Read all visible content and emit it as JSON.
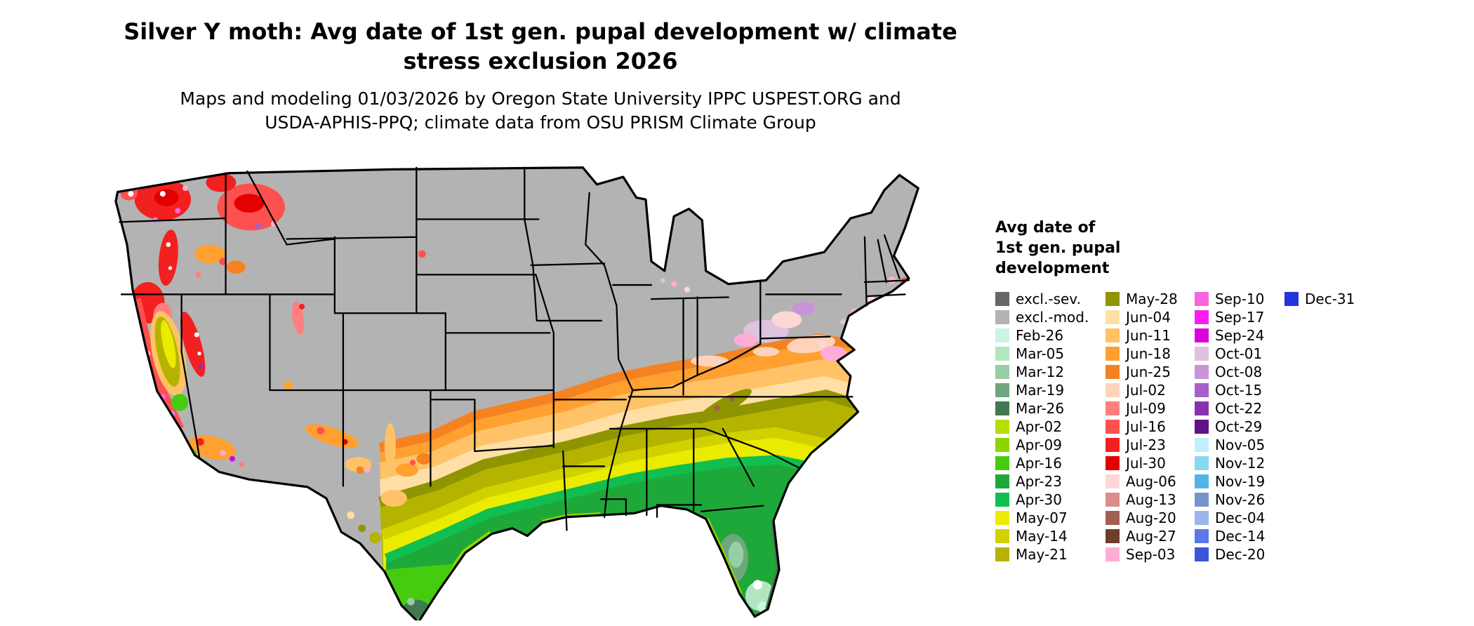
{
  "header": {
    "title_line1": "Silver Y moth: Avg date of 1st gen. pupal development w/ climate",
    "title_line2": "stress exclusion 2026",
    "subtitle_line1": "Maps and modeling 01/03/2026 by Oregon State University IPPC USPEST.ORG and",
    "subtitle_line2": "USDA-APHIS-PPQ; climate data from OSU PRISM Climate Group"
  },
  "map": {
    "water_color": "#ffffff",
    "border_color": "#000000"
  },
  "legend": {
    "title_lines": [
      "Avg date of",
      "1st gen. pupal",
      "development"
    ],
    "columns": [
      [
        {
          "label": "excl.-sev.",
          "color": "#666666"
        },
        {
          "label": "excl.-mod.",
          "color": "#b3b3b3"
        },
        {
          "label": "Feb-26",
          "color": "#ccf5e4"
        },
        {
          "label": "Mar-05",
          "color": "#b3e6c0"
        },
        {
          "label": "Mar-12",
          "color": "#96cfa4"
        },
        {
          "label": "Mar-19",
          "color": "#6fa67e"
        },
        {
          "label": "Mar-26",
          "color": "#417a50"
        },
        {
          "label": "Apr-02",
          "color": "#b4df00"
        },
        {
          "label": "Apr-09",
          "color": "#8cd600"
        },
        {
          "label": "Apr-16",
          "color": "#46cc0f"
        },
        {
          "label": "Apr-23",
          "color": "#1fa83a"
        },
        {
          "label": "Apr-30",
          "color": "#10bf50"
        },
        {
          "label": "May-07",
          "color": "#ebeb00"
        },
        {
          "label": "May-14",
          "color": "#d1d100"
        },
        {
          "label": "May-21",
          "color": "#b4b400"
        }
      ],
      [
        {
          "label": "May-28",
          "color": "#8f9500"
        },
        {
          "label": "Jun-04",
          "color": "#ffdfa6"
        },
        {
          "label": "Jun-11",
          "color": "#ffc266"
        },
        {
          "label": "Jun-18",
          "color": "#ffa030"
        },
        {
          "label": "Jun-25",
          "color": "#f58220"
        },
        {
          "label": "Jul-02",
          "color": "#ffd2bb"
        },
        {
          "label": "Jul-09",
          "color": "#ff7f7f"
        },
        {
          "label": "Jul-16",
          "color": "#ff5050"
        },
        {
          "label": "Jul-23",
          "color": "#f32020"
        },
        {
          "label": "Jul-30",
          "color": "#e30000"
        },
        {
          "label": "Aug-06",
          "color": "#ffd6d6"
        },
        {
          "label": "Aug-13",
          "color": "#d98d8d"
        },
        {
          "label": "Aug-20",
          "color": "#a35f52"
        },
        {
          "label": "Aug-27",
          "color": "#6e3d2e"
        },
        {
          "label": "Sep-03",
          "color": "#ffadd6"
        }
      ],
      [
        {
          "label": "Sep-10",
          "color": "#f766e0"
        },
        {
          "label": "Sep-17",
          "color": "#fa1ef0"
        },
        {
          "label": "Sep-24",
          "color": "#dc00dc"
        },
        {
          "label": "Oct-01",
          "color": "#dfc2df"
        },
        {
          "label": "Oct-08",
          "color": "#c893d8"
        },
        {
          "label": "Oct-15",
          "color": "#a75fc9"
        },
        {
          "label": "Oct-22",
          "color": "#8832b0"
        },
        {
          "label": "Oct-29",
          "color": "#611089"
        },
        {
          "label": "Nov-05",
          "color": "#c2eeff"
        },
        {
          "label": "Nov-12",
          "color": "#87d8f2"
        },
        {
          "label": "Nov-19",
          "color": "#52b5e8"
        },
        {
          "label": "Nov-26",
          "color": "#7793ce"
        },
        {
          "label": "Dec-04",
          "color": "#9cb5ea"
        },
        {
          "label": "Dec-14",
          "color": "#5c78e6"
        },
        {
          "label": "Dec-20",
          "color": "#3d55d9"
        }
      ],
      [
        {
          "label": "Dec-31",
          "color": "#2333dd"
        }
      ]
    ]
  }
}
